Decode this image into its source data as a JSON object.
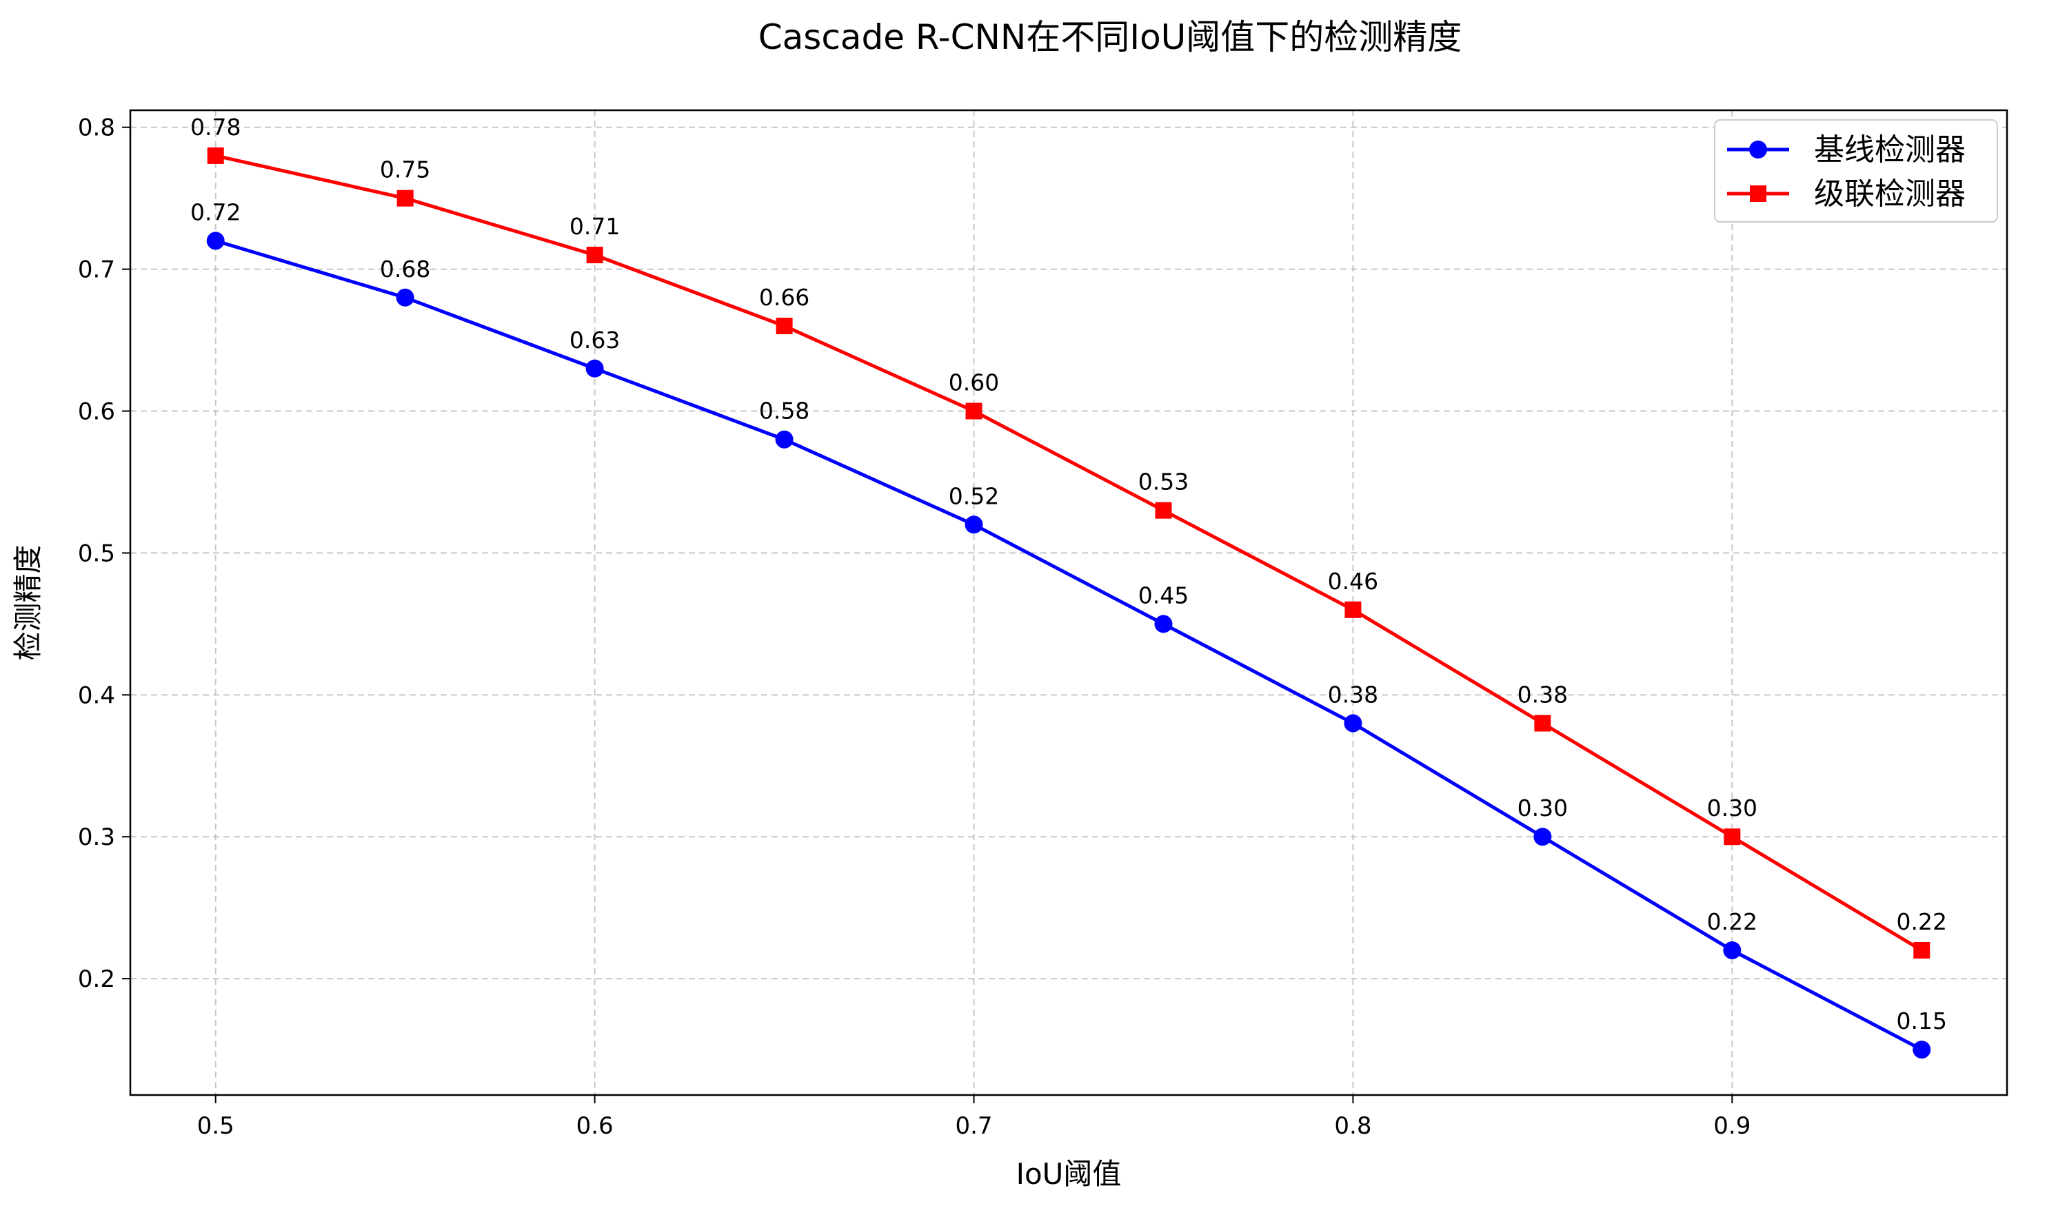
{
  "chart_data": {
    "type": "line",
    "title": "Cascade R-CNN在不同IoU阈值下的检测精度",
    "xlabel": "IoU阈值",
    "ylabel": "检测精度",
    "x": [
      0.5,
      0.55,
      0.6,
      0.65,
      0.7,
      0.75,
      0.8,
      0.85,
      0.9,
      0.95
    ],
    "xlim": [
      0.4775,
      0.9725
    ],
    "ylim": [
      0.118,
      0.812
    ],
    "xticks": [
      0.5,
      0.6,
      0.7,
      0.8,
      0.9
    ],
    "xtick_labels": [
      "0.5",
      "0.6",
      "0.7",
      "0.8",
      "0.9"
    ],
    "yticks": [
      0.2,
      0.3,
      0.4,
      0.5,
      0.6,
      0.7,
      0.8
    ],
    "ytick_labels": [
      "0.2",
      "0.3",
      "0.4",
      "0.5",
      "0.6",
      "0.7",
      "0.8"
    ],
    "grid": true,
    "legend_position": "top-right",
    "series": [
      {
        "name": "基线检测器",
        "color": "#0000ff",
        "marker": "circle",
        "values": [
          0.72,
          0.68,
          0.63,
          0.58,
          0.52,
          0.45,
          0.38,
          0.3,
          0.22,
          0.15
        ],
        "labels": [
          "0.72",
          "0.68",
          "0.63",
          "0.58",
          "0.52",
          "0.45",
          "0.38",
          "0.30",
          "0.22",
          "0.15"
        ]
      },
      {
        "name": "级联检测器",
        "color": "#ff0000",
        "marker": "square",
        "values": [
          0.78,
          0.75,
          0.71,
          0.66,
          0.6,
          0.53,
          0.46,
          0.38,
          0.3,
          0.22
        ],
        "labels": [
          "0.78",
          "0.75",
          "0.71",
          "0.66",
          "0.60",
          "0.53",
          "0.46",
          "0.38",
          "0.30",
          "0.22"
        ]
      }
    ]
  }
}
